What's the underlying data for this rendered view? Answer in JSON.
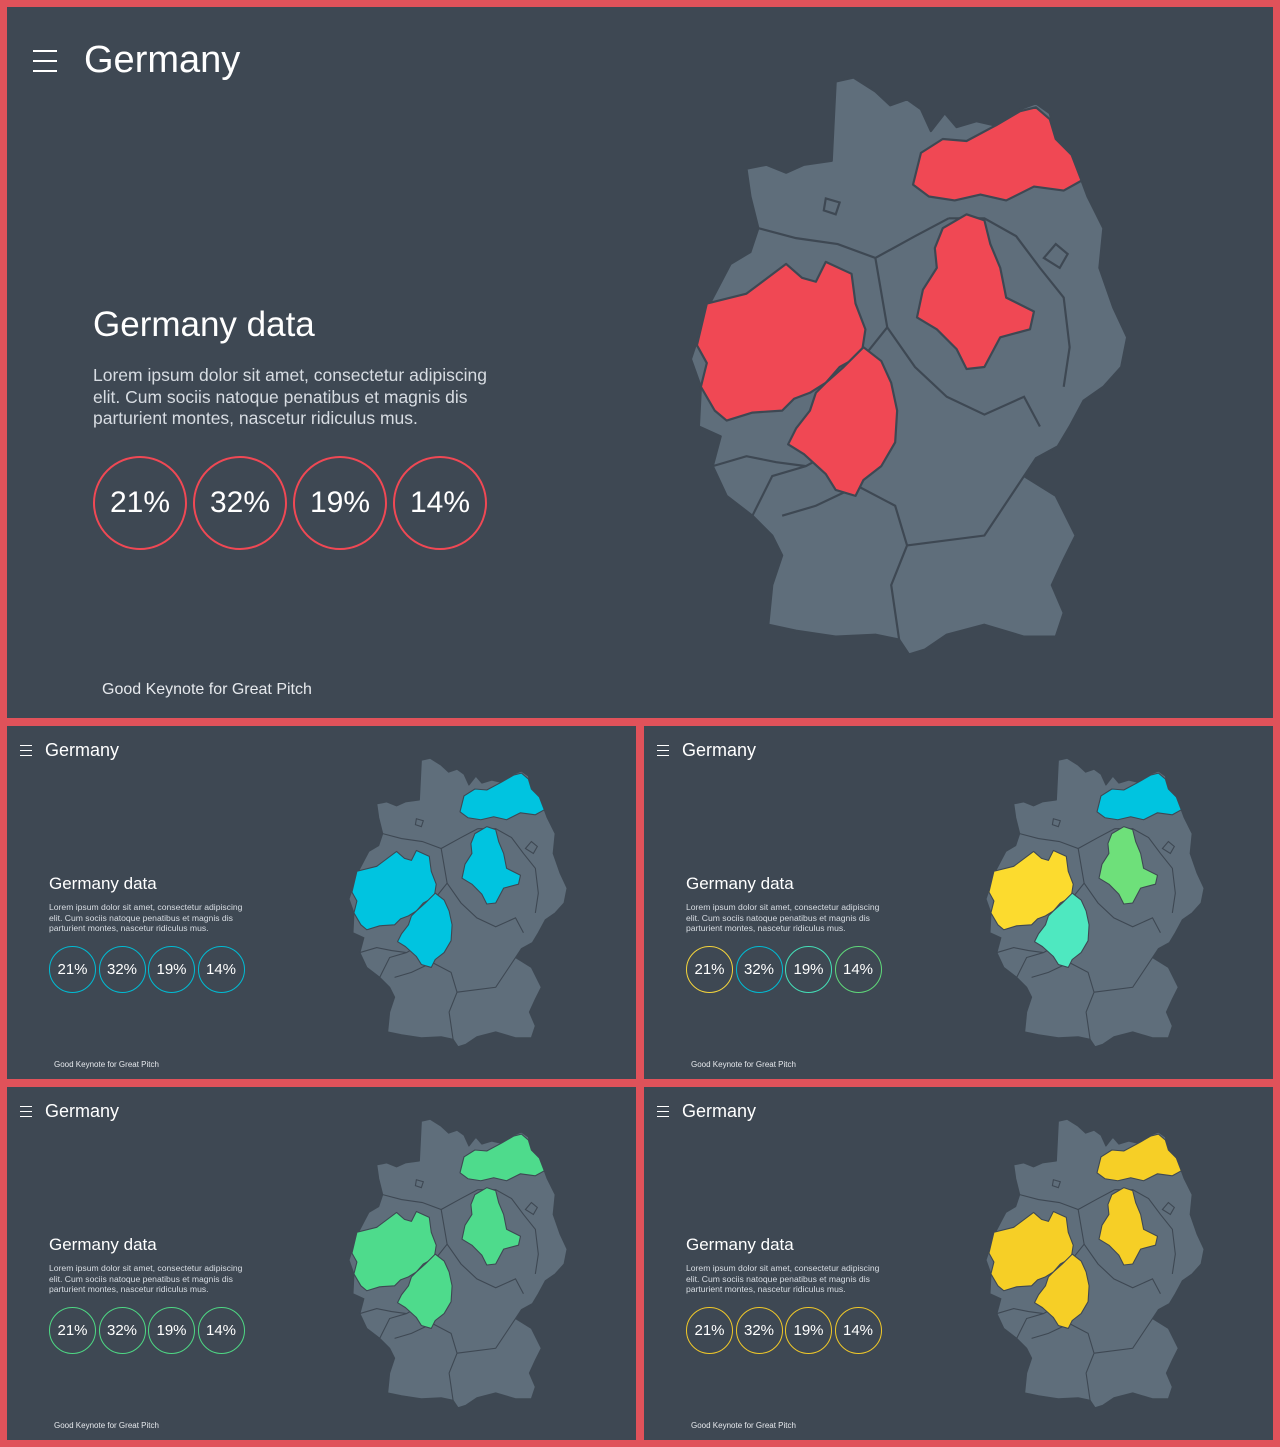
{
  "slides": [
    {
      "title": "Germany",
      "heading": "Germany data",
      "body": "Lorem ipsum dolor sit amet, consectetur adipiscing elit. Cum sociis natoque penatibus et magnis dis parturient montes, nascetur ridiculus mus.",
      "stats": [
        "21%",
        "32%",
        "19%",
        "14%"
      ],
      "footer": "Good Keynote for Great Pitch",
      "region_colors": {
        "mv": "#f04854",
        "st": "#f04854",
        "nw": "#f04854",
        "he": "#f04854"
      },
      "stat_colors": [
        "#f04854",
        "#f04854",
        "#f04854",
        "#f04854"
      ]
    },
    {
      "title": "Germany",
      "heading": "Germany data",
      "body": "Lorem ipsum dolor sit amet, consectetur adipiscing elit. Cum sociis natoque penatibus et magnis dis parturient montes, nascetur ridiculus mus.",
      "stats": [
        "21%",
        "32%",
        "19%",
        "14%"
      ],
      "footer": "Good Keynote for Great Pitch",
      "region_colors": {
        "mv": "#00c4e0",
        "st": "#00c4e0",
        "nw": "#00c4e0",
        "he": "#00c4e0"
      },
      "stat_colors": [
        "#00bcd4",
        "#00bcd4",
        "#00bcd4",
        "#00bcd4"
      ]
    },
    {
      "title": "Germany",
      "heading": "Germany data",
      "body": "Lorem ipsum dolor sit amet, consectetur adipiscing elit. Cum sociis natoque penatibus et magnis dis parturient montes, nascetur ridiculus mus.",
      "stats": [
        "21%",
        "32%",
        "19%",
        "14%"
      ],
      "footer": "Good Keynote for Great Pitch",
      "region_colors": {
        "mv": "#00c4e0",
        "st": "#6ee07a",
        "nw": "#fcdb2e",
        "he": "#4ee8c0"
      },
      "stat_colors": [
        "#f4d43c",
        "#00bcd4",
        "#44e0b8",
        "#5fd87a"
      ]
    },
    {
      "title": "Germany",
      "heading": "Germany data",
      "body": "Lorem ipsum dolor sit amet, consectetur adipiscing elit. Cum sociis natoque penatibus et magnis dis parturient montes, nascetur ridiculus mus.",
      "stats": [
        "21%",
        "32%",
        "19%",
        "14%"
      ],
      "footer": "Good Keynote for Great Pitch",
      "region_colors": {
        "mv": "#4edb8c",
        "st": "#4edb8c",
        "nw": "#4edb8c",
        "he": "#4edb8c"
      },
      "stat_colors": [
        "#4ed884",
        "#4ed884",
        "#4ed884",
        "#4ed884"
      ]
    },
    {
      "title": "Germany",
      "heading": "Germany data",
      "body": "Lorem ipsum dolor sit amet, consectetur adipiscing elit. Cum sociis natoque penatibus et magnis dis parturient montes, nascetur ridiculus mus.",
      "stats": [
        "21%",
        "32%",
        "19%",
        "14%"
      ],
      "footer": "Good Keynote for Great Pitch",
      "region_colors": {
        "mv": "#f6cf26",
        "st": "#f6cf26",
        "nw": "#f6cf26",
        "he": "#f6cf26"
      },
      "stat_colors": [
        "#f0c829",
        "#f0c829",
        "#f0c829",
        "#f0c829"
      ]
    }
  ]
}
